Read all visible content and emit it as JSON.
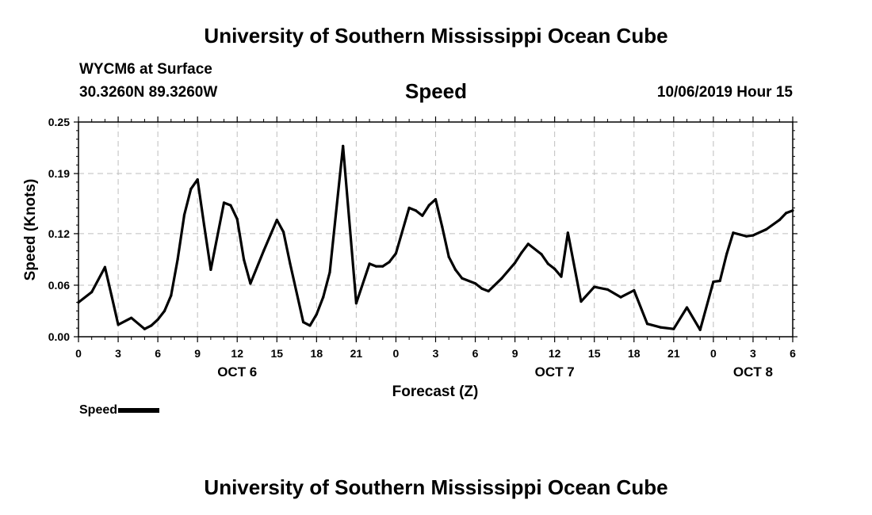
{
  "header": {
    "title_top": "University of Southern Mississippi Ocean Cube",
    "title_bottom": "University of Southern Mississippi Ocean Cube",
    "station": "WYCM6 at Surface",
    "coordinates": "30.3260N 89.3260W",
    "variable": "Speed",
    "datetime": "10/06/2019 Hour 15"
  },
  "legend": {
    "label": "Speed",
    "color": "#000000"
  },
  "chart_data": {
    "type": "line",
    "title": "Speed",
    "xlabel": "Forecast (Z)",
    "ylabel": "Speed (Knots)",
    "ylim": [
      0,
      0.25
    ],
    "yticks": [
      0,
      0.06,
      0.12,
      0.19,
      0.25
    ],
    "ytick_labels": [
      "0.00",
      "0.06",
      "0.12",
      "0.19",
      "0.25"
    ],
    "xlim": [
      0,
      54
    ],
    "xticks": [
      0,
      3,
      6,
      9,
      12,
      15,
      18,
      21,
      24,
      27,
      30,
      33,
      36,
      39,
      42,
      45,
      48,
      51,
      54
    ],
    "xtick_labels": [
      "0",
      "3",
      "6",
      "9",
      "12",
      "15",
      "18",
      "21",
      "0",
      "3",
      "6",
      "9",
      "12",
      "15",
      "18",
      "21",
      "0",
      "3",
      "6"
    ],
    "date_labels": [
      {
        "hour": 12,
        "label": "OCT 6"
      },
      {
        "hour": 36,
        "label": "OCT 7"
      },
      {
        "hour": 51,
        "label": "OCT 8"
      }
    ],
    "grid": true,
    "series": [
      {
        "name": "Speed",
        "color": "#000000",
        "x": [
          0,
          1,
          2,
          2.5,
          3,
          4,
          5,
          5.5,
          6,
          6.5,
          7,
          7.5,
          8,
          8.5,
          9,
          9.5,
          10,
          11,
          11.5,
          12,
          12.5,
          13,
          14,
          15,
          15.5,
          16,
          17,
          17.5,
          18,
          18.5,
          19,
          20,
          21,
          22,
          22.5,
          23,
          23.5,
          24,
          25,
          25.5,
          26,
          26.5,
          27,
          27.5,
          28,
          28.5,
          29,
          30,
          30.5,
          31,
          32,
          33,
          33.5,
          34,
          35,
          35.5,
          36,
          36.5,
          37,
          38,
          39,
          40,
          41,
          42,
          43,
          44,
          45,
          46,
          47,
          48,
          48.5,
          49,
          49.5,
          50,
          50.5,
          51,
          52,
          53,
          53.5,
          54
        ],
        "values": [
          0.04,
          0.052,
          0.081,
          0.048,
          0.014,
          0.022,
          0.009,
          0.013,
          0.02,
          0.03,
          0.048,
          0.09,
          0.142,
          0.172,
          0.183,
          0.13,
          0.078,
          0.156,
          0.153,
          0.137,
          0.09,
          0.062,
          0.1,
          0.136,
          0.122,
          0.085,
          0.017,
          0.013,
          0.026,
          0.046,
          0.075,
          0.222,
          0.039,
          0.085,
          0.082,
          0.082,
          0.087,
          0.097,
          0.15,
          0.147,
          0.141,
          0.153,
          0.16,
          0.128,
          0.093,
          0.078,
          0.068,
          0.062,
          0.056,
          0.053,
          0.068,
          0.086,
          0.098,
          0.108,
          0.096,
          0.085,
          0.079,
          0.07,
          0.121,
          0.041,
          0.058,
          0.055,
          0.046,
          0.054,
          0.015,
          0.011,
          0.009,
          0.034,
          0.008,
          0.064,
          0.065,
          0.096,
          0.121,
          0.119,
          0.117,
          0.118,
          0.125,
          0.136,
          0.144,
          0.147
        ]
      }
    ]
  }
}
